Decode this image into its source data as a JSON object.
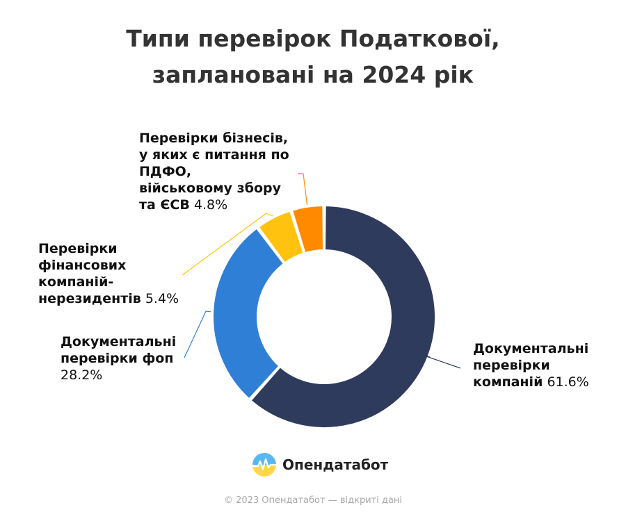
{
  "chart_data": {
    "type": "pie",
    "title_lines": [
      "Типи перевірок Податкової,",
      "заплановані на 2024 рік"
    ],
    "slices": [
      {
        "label_lines": [
          "Документальні",
          "перевірки",
          "компаній"
        ],
        "value": 61.6,
        "value_text": "61.6%",
        "color": "#2f3b5c"
      },
      {
        "label_lines": [
          "Документальні",
          "перевірки фоп"
        ],
        "value": 28.2,
        "value_text": "28.2%",
        "color": "#2f7fd6"
      },
      {
        "label_lines": [
          "Перевірки",
          "фінансових",
          "компаній-",
          "нерезидентів"
        ],
        "value": 5.4,
        "value_text": "5.4%",
        "color": "#ffc20e"
      },
      {
        "label_lines": [
          "Перевірки бізнесів,",
          "у яких є питання по",
          "ПДФО,",
          "військовому збору",
          "та ЄСВ"
        ],
        "value": 4.8,
        "value_text": "4.8%",
        "color": "#ff8a00"
      }
    ]
  },
  "brand": {
    "name": "Опендатабот",
    "logo_icon": "opendatabot-logo-icon"
  },
  "footer": "© 2023 Опендатабот — відкриті дані"
}
